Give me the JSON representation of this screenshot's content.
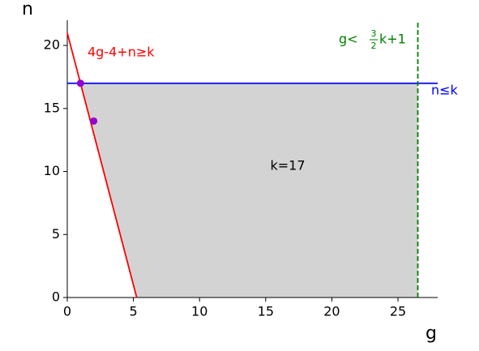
{
  "chart_data": {
    "type": "line",
    "x_label": "g",
    "y_label": "n",
    "xlim": [
      0,
      28
    ],
    "ylim": [
      0,
      22
    ],
    "xticks": [
      0,
      5,
      10,
      15,
      20,
      25
    ],
    "yticks": [
      0,
      5,
      10,
      15,
      20
    ],
    "region": {
      "name": "k=17",
      "color": "#d3d3d3",
      "x": [
        1,
        26.5,
        26.5,
        5.25
      ],
      "y": [
        17,
        17,
        0,
        0
      ]
    },
    "series": [
      {
        "name": "4g-4+n≥k",
        "color": "#ff0000",
        "dash": false,
        "x": [
          0,
          5.25
        ],
        "values": [
          21,
          0
        ]
      },
      {
        "name": "n≤k",
        "color": "#0000ff",
        "dash": false,
        "x": [
          0,
          28
        ],
        "values": [
          17,
          17
        ]
      },
      {
        "name": {
          "prefix": "g<",
          "numerator": "3",
          "denominator": "2",
          "suffix": "k+1"
        },
        "color": "#008000",
        "dash": true,
        "x": [
          26.5,
          26.5
        ],
        "values": [
          0,
          22
        ]
      }
    ],
    "points": {
      "color": "#9400d3",
      "x": [
        1,
        2
      ],
      "values": [
        17,
        14
      ]
    }
  }
}
